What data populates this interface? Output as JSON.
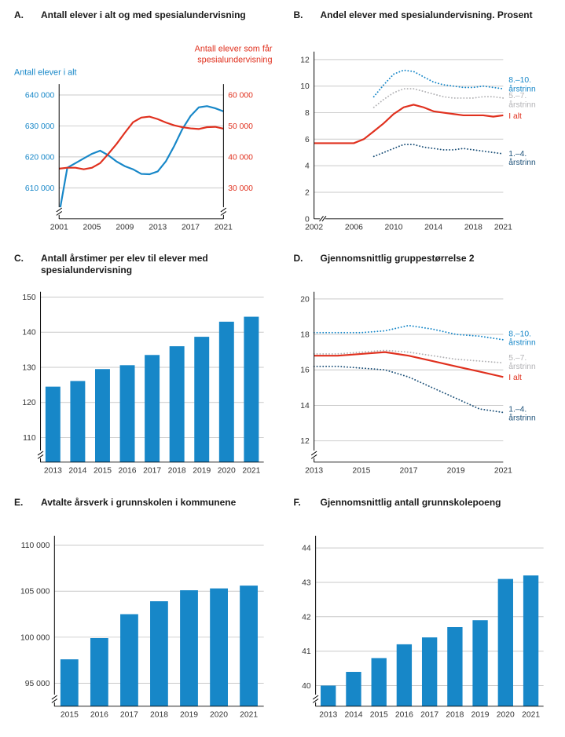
{
  "colors": {
    "blue": "#1787c8",
    "red": "#e0301e",
    "gray": "#b3b3b6",
    "navy": "#1d5179",
    "axis": "#000000",
    "grid": "#c9c9c9",
    "text": "#333333"
  },
  "chart_data": [
    {
      "id": "A",
      "panel": "A.",
      "type": "line",
      "title": "Antall elever i alt og med spesialundervisning",
      "x": [
        2001,
        2002,
        2003,
        2004,
        2005,
        2006,
        2007,
        2008,
        2009,
        2010,
        2011,
        2012,
        2013,
        2014,
        2015,
        2016,
        2017,
        2018,
        2019,
        2020,
        2021
      ],
      "x_range": [
        2001,
        2021
      ],
      "x_ticks": [
        2001,
        2005,
        2009,
        2013,
        2017,
        2021
      ],
      "axes": {
        "left": {
          "min": 600000,
          "max": 643500,
          "ticks": [
            610000,
            620000,
            630000,
            640000
          ],
          "tick_labels": [
            "610 000",
            "620 000",
            "630 000",
            "640 000"
          ],
          "tick_color": "blue",
          "axis_break": true,
          "title": "Antall elever i alt",
          "title_color": "blue"
        },
        "right": {
          "min": 20000,
          "max": 63500,
          "ticks": [
            30000,
            40000,
            50000,
            60000
          ],
          "tick_labels": [
            "30 000",
            "40 000",
            "50 000",
            "60 000"
          ],
          "tick_color": "red",
          "axis_break": true,
          "title_lines": [
            "Antall elever som får",
            "spesialundervisning"
          ],
          "title_color": "red"
        }
      },
      "series": [
        {
          "name": "Antall elever i alt",
          "axis": "left",
          "color": "blue",
          "dotted": false,
          "values": [
            601500,
            616500,
            618000,
            619500,
            621000,
            622000,
            620500,
            618500,
            617000,
            616000,
            614500,
            614400,
            615300,
            618600,
            623500,
            629000,
            633200,
            636000,
            636400,
            635700,
            634700
          ]
        },
        {
          "name": "Antall elever som får spesialundervisning",
          "axis": "right",
          "color": "red",
          "dotted": false,
          "values": [
            36200,
            36500,
            36500,
            36000,
            36500,
            38000,
            41000,
            44200,
            47800,
            51200,
            52700,
            53000,
            52200,
            51100,
            50200,
            49600,
            49200,
            49000,
            49600,
            49700,
            49100
          ]
        }
      ],
      "layout": {
        "ml": 58,
        "mr": 64,
        "mt": 62,
        "mb": 36
      }
    },
    {
      "id": "B",
      "panel": "B.",
      "type": "line",
      "title": "Andel elever med spesialundervisning. Prosent",
      "x": [
        2002,
        2003,
        2004,
        2005,
        2006,
        2007,
        2008,
        2009,
        2010,
        2011,
        2012,
        2013,
        2014,
        2015,
        2016,
        2017,
        2018,
        2019,
        2020,
        2021
      ],
      "x_range": [
        2002,
        2021
      ],
      "x_ticks": [
        2002,
        2006,
        2010,
        2014,
        2018,
        2021
      ],
      "x_break": true,
      "axes": {
        "left": {
          "min": 0,
          "max": 12.6,
          "ticks": [
            0,
            2,
            4,
            6,
            8,
            10,
            12
          ],
          "tick_labels": [
            "0",
            "2",
            "4",
            "6",
            "8",
            "10",
            "12"
          ],
          "axis_break": false
        }
      },
      "series": [
        {
          "name": "8.–10. årstrinn",
          "color": "blue",
          "dotted": true,
          "x": [
            2008,
            2009,
            2010,
            2011,
            2012,
            2013,
            2014,
            2015,
            2016,
            2017,
            2018,
            2019,
            2020,
            2021
          ],
          "values": [
            9.2,
            10.1,
            10.9,
            11.2,
            11.1,
            10.7,
            10.3,
            10.1,
            10.0,
            9.9,
            9.9,
            10.0,
            9.9,
            9.8
          ],
          "label": {
            "lines": [
              "8.–10.",
              "årstrinn"
            ],
            "anchor": 10.15
          }
        },
        {
          "name": "5.–7. årstrinn",
          "color": "gray",
          "dotted": true,
          "x": [
            2008,
            2009,
            2010,
            2011,
            2012,
            2013,
            2014,
            2015,
            2016,
            2017,
            2018,
            2019,
            2020,
            2021
          ],
          "values": [
            8.4,
            9.0,
            9.5,
            9.8,
            9.8,
            9.6,
            9.4,
            9.2,
            9.1,
            9.1,
            9.1,
            9.2,
            9.2,
            9.1
          ],
          "label": {
            "lines": [
              "5.–7.",
              "årstrinn"
            ],
            "anchor": 8.95
          }
        },
        {
          "name": "1.–4. årstrinn",
          "color": "navy",
          "dotted": true,
          "x": [
            2008,
            2009,
            2010,
            2011,
            2012,
            2013,
            2014,
            2015,
            2016,
            2017,
            2018,
            2019,
            2020,
            2021
          ],
          "values": [
            4.7,
            5.0,
            5.3,
            5.6,
            5.6,
            5.4,
            5.3,
            5.2,
            5.2,
            5.3,
            5.2,
            5.1,
            5.0,
            4.9
          ],
          "label": {
            "lines": [
              "1.–4.",
              "årstrinn"
            ],
            "anchor": 4.6
          }
        },
        {
          "name": "I alt",
          "color": "red",
          "dotted": false,
          "values": [
            5.7,
            5.7,
            5.7,
            5.7,
            5.7,
            6.0,
            6.6,
            7.2,
            7.9,
            8.4,
            8.6,
            8.4,
            8.1,
            8.0,
            7.9,
            7.8,
            7.8,
            7.8,
            7.7,
            7.8
          ],
          "label": {
            "lines": [
              "I alt"
            ],
            "anchor": 7.75
          }
        }
      ],
      "layout": {
        "ml": 26,
        "mr": 64,
        "mt": 20,
        "mb": 36
      }
    },
    {
      "id": "C",
      "panel": "C.",
      "type": "bar",
      "title": "Antall årstimer per elev til elever med spesialundervisning",
      "x": [
        2013,
        2014,
        2015,
        2016,
        2017,
        2018,
        2019,
        2020,
        2021
      ],
      "axes": {
        "left": {
          "min": 103,
          "max": 151.5,
          "ticks": [
            110,
            120,
            130,
            140,
            150
          ],
          "tick_labels": [
            "110",
            "120",
            "130",
            "140",
            "150"
          ],
          "axis_break": true
        }
      },
      "series": [
        {
          "name": "Antall årstimer per elev",
          "color": "blue",
          "values": [
            124.5,
            126.1,
            129.5,
            130.6,
            133.5,
            136.0,
            138.7,
            143.0,
            144.4
          ]
        }
      ],
      "layout": {
        "ml": 34,
        "mr": 12,
        "mt": 16,
        "mb": 36
      }
    },
    {
      "id": "D",
      "panel": "D.",
      "type": "line",
      "title": "Gjennomsnittlig gruppestørrelse 2",
      "x": [
        2013,
        2014,
        2015,
        2016,
        2017,
        2018,
        2019,
        2020,
        2021
      ],
      "x_range": [
        2013,
        2021
      ],
      "x_ticks": [
        2013,
        2015,
        2017,
        2019,
        2021
      ],
      "axes": {
        "left": {
          "min": 10.8,
          "max": 20.4,
          "ticks": [
            12,
            14,
            16,
            18,
            20
          ],
          "tick_labels": [
            "12",
            "14",
            "16",
            "18",
            "20"
          ],
          "axis_break": true
        }
      },
      "series": [
        {
          "name": "8.–10. årstrinn",
          "color": "blue",
          "dotted": true,
          "values": [
            18.1,
            18.1,
            18.1,
            18.2,
            18.5,
            18.3,
            18.0,
            17.9,
            17.7
          ],
          "label": {
            "lines": [
              "8.–10.",
              "årstrinn"
            ],
            "anchor": 17.8
          }
        },
        {
          "name": "5.–7. årstrinn",
          "color": "gray",
          "dotted": true,
          "values": [
            16.9,
            16.9,
            17.0,
            17.1,
            17.0,
            16.8,
            16.6,
            16.5,
            16.4
          ],
          "label": {
            "lines": [
              "5.–7.",
              "årstrinn"
            ],
            "anchor": 16.45
          }
        },
        {
          "name": "1.–4. årstrinn",
          "color": "navy",
          "dotted": true,
          "values": [
            16.2,
            16.2,
            16.1,
            16.0,
            15.6,
            15.0,
            14.4,
            13.8,
            13.6
          ],
          "label": {
            "lines": [
              "1.–4.",
              "årstrinn"
            ],
            "anchor": 13.55
          }
        },
        {
          "name": "I alt",
          "color": "red",
          "dotted": false,
          "values": [
            16.8,
            16.8,
            16.9,
            17.0,
            16.8,
            16.5,
            16.2,
            15.9,
            15.6
          ],
          "label": {
            "lines": [
              "I alt"
            ],
            "anchor": 15.6
          }
        }
      ],
      "layout": {
        "ml": 26,
        "mr": 64,
        "mt": 16,
        "mb": 36
      }
    },
    {
      "id": "E",
      "panel": "E.",
      "type": "bar",
      "title": "Avtalte årsverk i grunnskolen i kommunene",
      "x": [
        2015,
        2016,
        2017,
        2018,
        2019,
        2020,
        2021
      ],
      "axes": {
        "left": {
          "min": 92500,
          "max": 111000,
          "ticks": [
            95000,
            100000,
            105000,
            110000
          ],
          "tick_labels": [
            "95 000",
            "100 000",
            "105 000",
            "110 000"
          ],
          "axis_break": true
        }
      },
      "series": [
        {
          "name": "Avtalte årsverk",
          "color": "blue",
          "values": [
            97600,
            99900,
            102500,
            103900,
            105100,
            105300,
            105600
          ]
        }
      ],
      "layout": {
        "ml": 52,
        "mr": 12,
        "mt": 16,
        "mb": 36
      }
    },
    {
      "id": "F",
      "panel": "F.",
      "type": "bar",
      "title": "Gjennomsnittlig antall grunnskolepoeng",
      "x": [
        2013,
        2014,
        2015,
        2016,
        2017,
        2018,
        2019,
        2020,
        2021
      ],
      "axes": {
        "left": {
          "min": 39.4,
          "max": 44.35,
          "ticks": [
            40,
            41,
            42,
            43,
            44
          ],
          "tick_labels": [
            "40",
            "41",
            "42",
            "43",
            "44"
          ],
          "axis_break": true
        }
      },
      "series": [
        {
          "name": "Grunnskolepoeng",
          "color": "blue",
          "values": [
            40.0,
            40.4,
            40.8,
            41.2,
            41.4,
            41.7,
            41.9,
            43.1,
            43.2
          ]
        }
      ],
      "layout": {
        "ml": 28,
        "mr": 12,
        "mt": 16,
        "mb": 36
      }
    }
  ]
}
